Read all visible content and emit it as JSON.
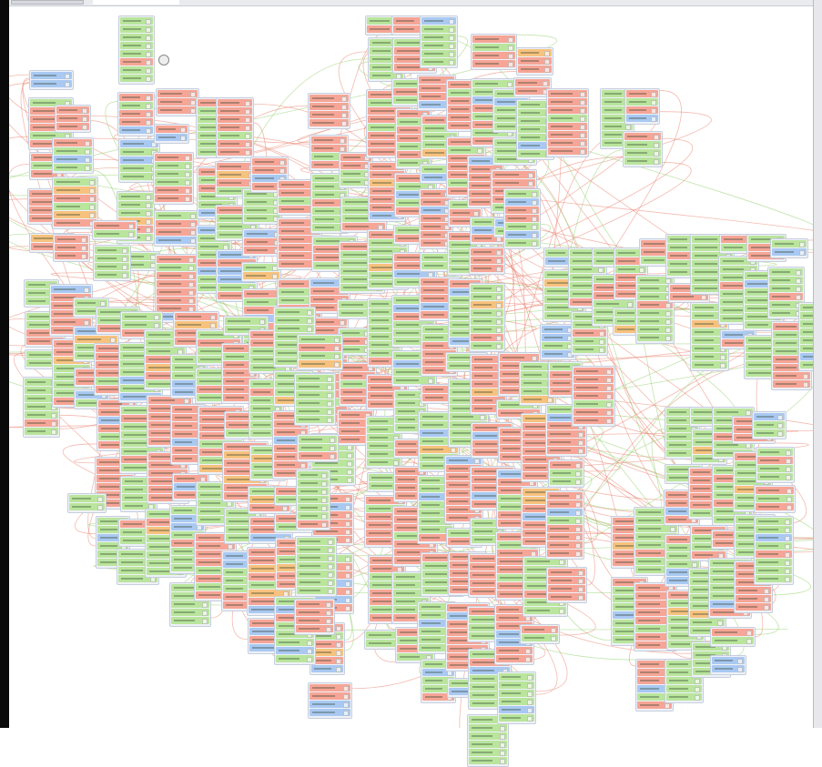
{
  "window": {
    "tabs": [
      {
        "label": "",
        "active": false
      },
      {
        "label": "",
        "active": true
      }
    ]
  },
  "diagram": {
    "colors": {
      "green": "#b9e59c",
      "red": "#f6a596",
      "blue": "#a9c9f2",
      "orange": "#f7c27e",
      "node_frame": "#eef1f7",
      "edge_red": "#e9826f",
      "edge_green": "#8fcf6a"
    },
    "row_types": [
      "green",
      "red",
      "blue",
      "orange"
    ]
  }
}
